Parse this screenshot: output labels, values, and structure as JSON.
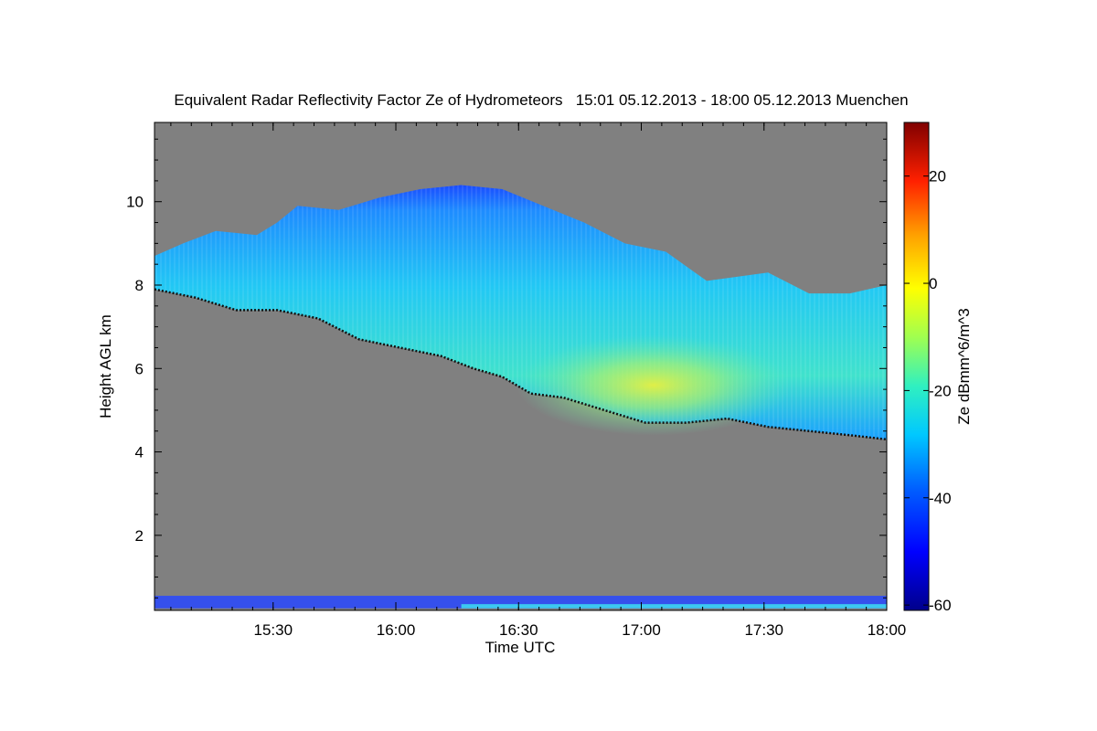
{
  "chart_data": {
    "type": "heatmap",
    "title": "Equivalent Radar Reflectivity Factor Ze of Hydrometeors   15:01 05.12.2013 - 18:00 05.12.2013 Muenchen",
    "xlabel": "Time UTC",
    "ylabel": "Height AGL km",
    "x_range_minutes": [
      0,
      179
    ],
    "x_start_label": "15:01",
    "x_end_label": "18:00",
    "x_ticks": [
      {
        "label": "15:30",
        "minute": 29
      },
      {
        "label": "16:00",
        "minute": 59
      },
      {
        "label": "16:30",
        "minute": 89
      },
      {
        "label": "17:00",
        "minute": 119
      },
      {
        "label": "17:30",
        "minute": 149
      },
      {
        "label": "18:00",
        "minute": 179
      }
    ],
    "ylim": [
      0.2,
      11.9
    ],
    "y_ticks": [
      2,
      4,
      6,
      8,
      10
    ],
    "colorbar": {
      "label": "Ze dBmm^6/m^3",
      "range": [
        -61,
        30
      ],
      "ticks": [
        20,
        0,
        -20,
        -40,
        -60
      ]
    },
    "background_color": "#808080",
    "cloud_top_km": [
      {
        "t": 0,
        "h": 8.7
      },
      {
        "t": 7,
        "h": 9.0
      },
      {
        "t": 15,
        "h": 9.3
      },
      {
        "t": 25,
        "h": 9.2
      },
      {
        "t": 30,
        "h": 9.5
      },
      {
        "t": 35,
        "h": 9.9
      },
      {
        "t": 45,
        "h": 9.8
      },
      {
        "t": 55,
        "h": 10.1
      },
      {
        "t": 65,
        "h": 10.3
      },
      {
        "t": 75,
        "h": 10.4
      },
      {
        "t": 85,
        "h": 10.3
      },
      {
        "t": 95,
        "h": 9.9
      },
      {
        "t": 105,
        "h": 9.5
      },
      {
        "t": 115,
        "h": 9.0
      },
      {
        "t": 125,
        "h": 8.8
      },
      {
        "t": 135,
        "h": 8.1
      },
      {
        "t": 150,
        "h": 8.3
      },
      {
        "t": 160,
        "h": 7.8
      },
      {
        "t": 170,
        "h": 7.8
      },
      {
        "t": 179,
        "h": 8.0
      }
    ],
    "cloud_base_km": [
      {
        "t": 0,
        "h": 7.9
      },
      {
        "t": 10,
        "h": 7.7
      },
      {
        "t": 20,
        "h": 7.4
      },
      {
        "t": 30,
        "h": 7.4
      },
      {
        "t": 40,
        "h": 7.2
      },
      {
        "t": 50,
        "h": 6.7
      },
      {
        "t": 60,
        "h": 6.5
      },
      {
        "t": 70,
        "h": 6.3
      },
      {
        "t": 78,
        "h": 6.0
      },
      {
        "t": 85,
        "h": 5.8
      },
      {
        "t": 92,
        "h": 5.4
      },
      {
        "t": 100,
        "h": 5.3
      },
      {
        "t": 110,
        "h": 5.0
      },
      {
        "t": 120,
        "h": 4.7
      },
      {
        "t": 130,
        "h": 4.7
      },
      {
        "t": 140,
        "h": 4.8
      },
      {
        "t": 150,
        "h": 4.6
      },
      {
        "t": 160,
        "h": 4.5
      },
      {
        "t": 170,
        "h": 4.4
      },
      {
        "t": 179,
        "h": 4.3
      }
    ],
    "core_max_ze": {
      "t": 122,
      "h": 5.6,
      "ze": -10
    }
  }
}
